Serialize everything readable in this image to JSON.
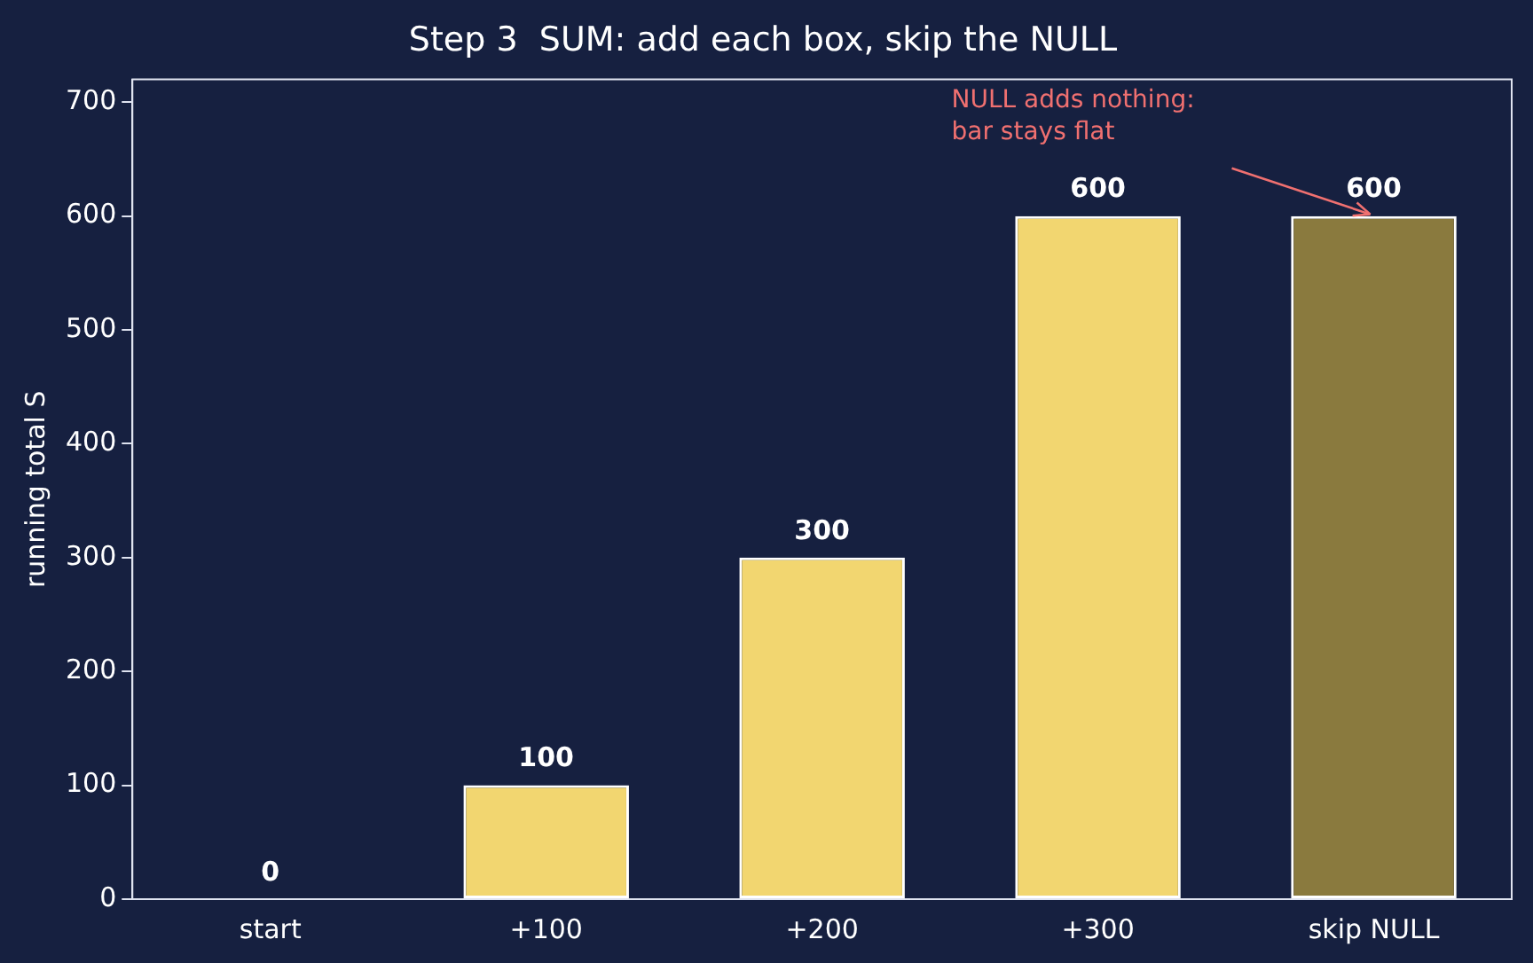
{
  "chart_data": {
    "type": "bar",
    "title": "Step 3  SUM: add each box, skip the NULL",
    "ylabel": "running total S",
    "categories": [
      "start",
      "+100",
      "+200",
      "+300",
      "skip NULL"
    ],
    "values": [
      0,
      100,
      300,
      600,
      600
    ],
    "colors": [
      "#f2d670",
      "#f2d670",
      "#f2d670",
      "#f2d670",
      "#8a7a3e"
    ],
    "ylim": [
      0,
      720
    ],
    "yticks": [
      0,
      100,
      200,
      300,
      400,
      500,
      600,
      700
    ],
    "data_labels": true,
    "grid": false,
    "legend": false,
    "annotations": [
      "NULL adds nothing:\nbar stays flat"
    ]
  }
}
